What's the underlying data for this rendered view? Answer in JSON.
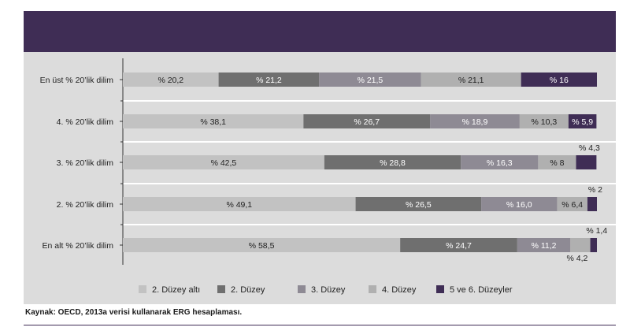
{
  "colors": {
    "header_band": "#3f2d55",
    "panel_bg": "#dcdcdc",
    "row_sep": "#ffffff",
    "axis": "#333333",
    "series": [
      "#c2c2c2",
      "#6f6f6f",
      "#8e8a94",
      "#b0b0b0",
      "#3f2d55"
    ],
    "label_light": "#ffffff",
    "label_dark": "#222222"
  },
  "source": "Kaynak: OECD, 2013a verisi kullanarak ERG hesaplaması.",
  "chart_data": {
    "type": "bar",
    "orientation": "horizontal",
    "stacked": true,
    "xlim": [
      0,
      100
    ],
    "grid": false,
    "legend": "bottom",
    "categories": [
      "En üst % 20’lik dilim",
      "4. % 20’lik dilim",
      "3. % 20’lik dilim",
      "2. % 20’lik dilim",
      "En alt % 20’lik dilim"
    ],
    "series": [
      {
        "name": "2. Düzey altı",
        "values": [
          20.2,
          38.1,
          42.5,
          49.1,
          58.5
        ],
        "labels": [
          "% 20,2",
          "% 38,1",
          "% 42,5",
          "% 49,1",
          "% 58,5"
        ]
      },
      {
        "name": "2. Düzey",
        "values": [
          21.2,
          26.7,
          28.8,
          26.5,
          24.7
        ],
        "labels": [
          "% 21,2",
          "% 26,7",
          "% 28,8",
          "% 26,5",
          "% 24,7"
        ]
      },
      {
        "name": "3. Düzey",
        "values": [
          21.5,
          18.9,
          16.3,
          16.0,
          11.2
        ],
        "labels": [
          "% 21,5",
          "% 18,9",
          "% 16,3",
          "% 16,0",
          "% 11,2"
        ]
      },
      {
        "name": "4. Düzey",
        "values": [
          21.1,
          10.3,
          8,
          6.4,
          4.2
        ],
        "labels": [
          "% 21,1",
          "% 10,3",
          "% 8",
          "% 6,4",
          "% 4,2"
        ]
      },
      {
        "name": "5 ve 6. Düzeyler",
        "values": [
          16,
          5.9,
          4.3,
          2,
          1.4
        ],
        "labels": [
          "% 16",
          "% 5,9",
          "% 4,3",
          "% 2",
          "% 1,4"
        ]
      }
    ]
  }
}
